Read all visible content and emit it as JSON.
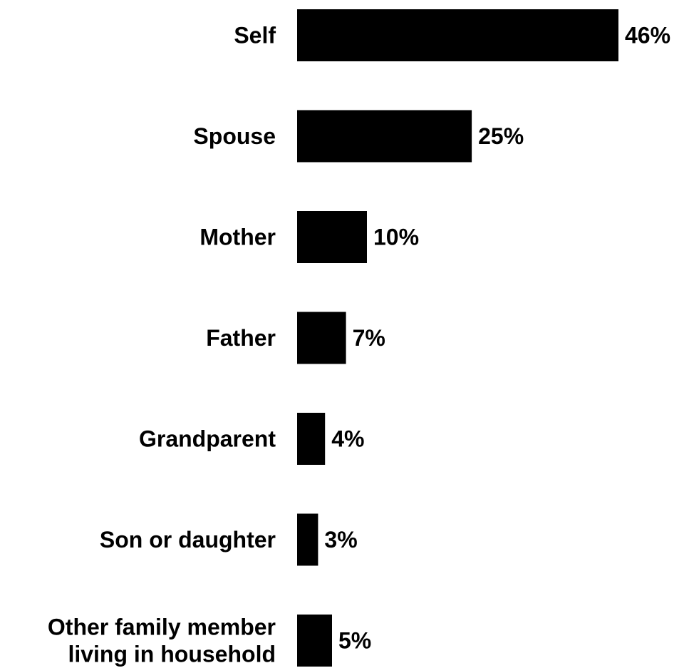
{
  "chart_data": {
    "type": "bar",
    "orientation": "horizontal",
    "categories": [
      [
        "Self"
      ],
      [
        "Spouse"
      ],
      [
        "Mother"
      ],
      [
        "Father"
      ],
      [
        "Grandparent"
      ],
      [
        "Son or daughter"
      ],
      [
        "Other family member",
        "living in household"
      ]
    ],
    "values": [
      46,
      25,
      10,
      7,
      4,
      3,
      5
    ],
    "value_labels": [
      "46%",
      "25%",
      "10%",
      "7%",
      "4%",
      "3%",
      "5%"
    ],
    "unit": "%",
    "xlim": [
      0,
      46
    ],
    "grid": false,
    "legend": "none",
    "bar_color": "#000000",
    "text_color": "#000000"
  }
}
